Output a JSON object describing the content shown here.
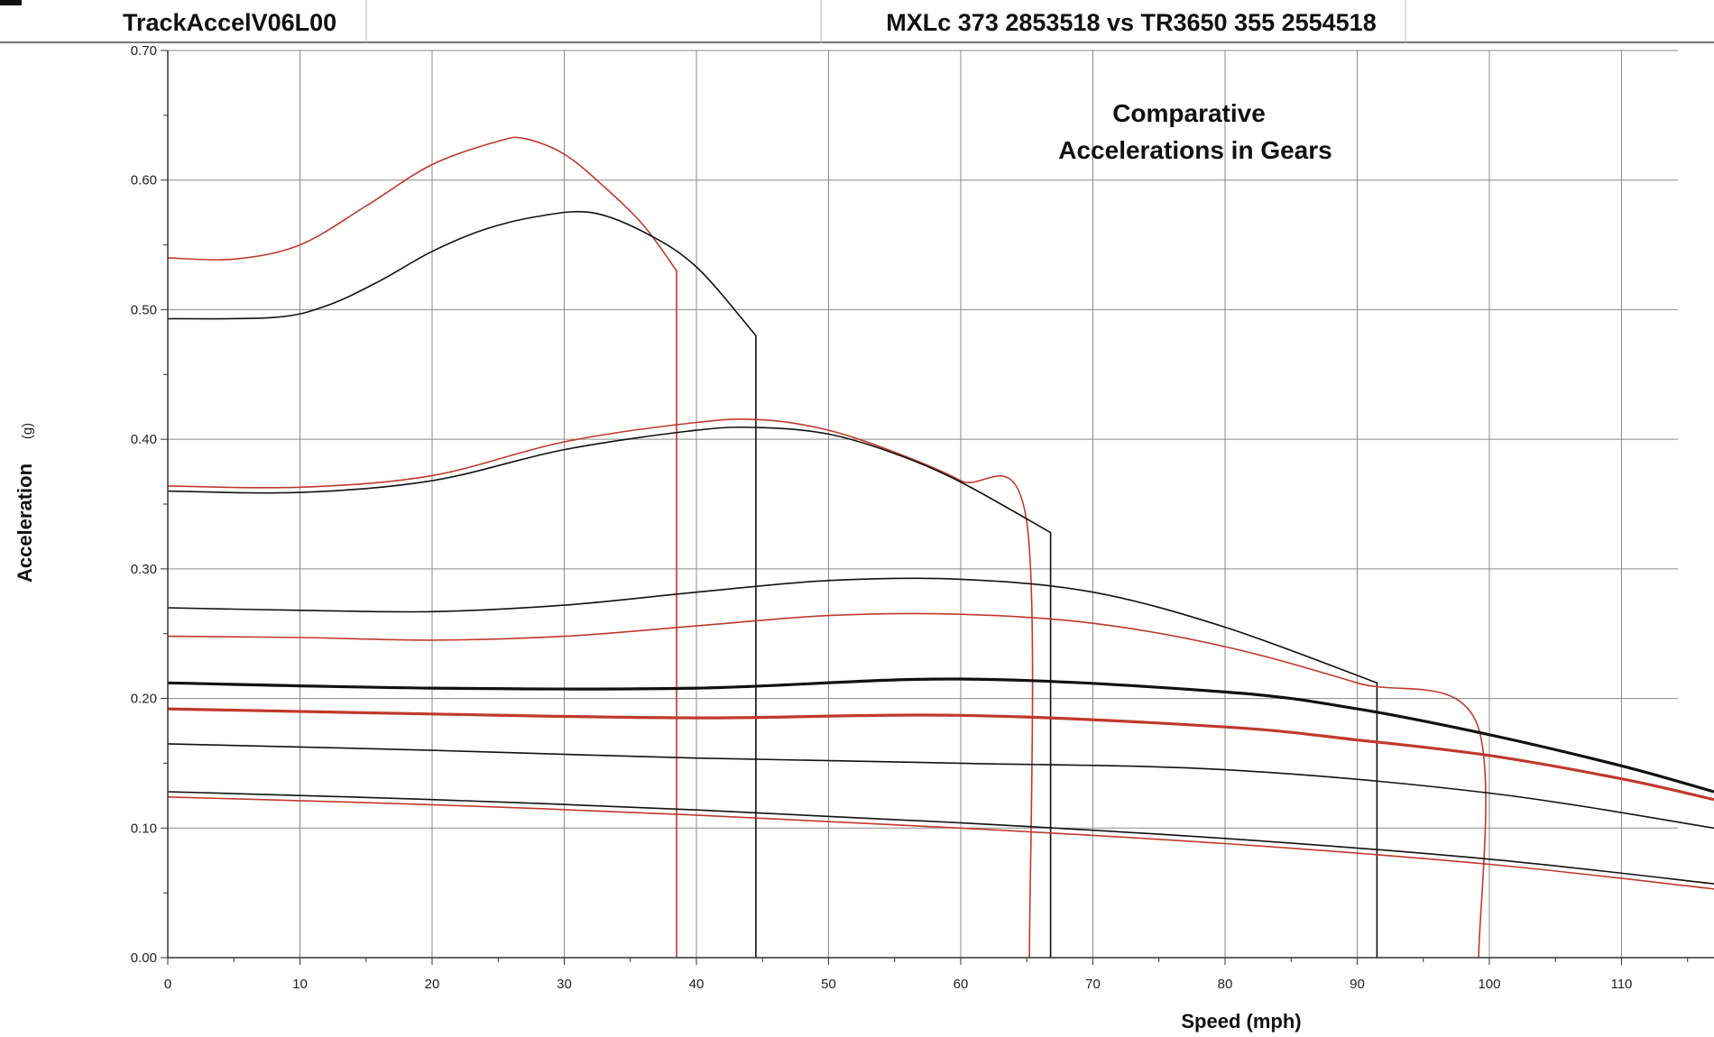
{
  "header": {
    "left_title": "TrackAccelV06L00",
    "right_title": "MXLc 373 2853518 vs TR3650 355 2554518"
  },
  "chart_data": {
    "type": "line",
    "title": "",
    "annotation": [
      "Comparative",
      "Accelerations in Gears"
    ],
    "xlabel": "Speed (mph)",
    "ylabel": "Acceleration",
    "ylabel_unit": "(g)",
    "xlim": [
      0,
      117
    ],
    "ylim": [
      0,
      0.7
    ],
    "x_ticks": [
      0,
      10,
      20,
      30,
      40,
      50,
      60,
      70,
      80,
      90,
      100,
      110
    ],
    "y_ticks": [
      0.0,
      0.1,
      0.2,
      0.3,
      0.4,
      0.5,
      0.6,
      0.7
    ],
    "y_tick_labels": [
      "0.00",
      "0.10",
      "0.20",
      "0.30",
      "0.40",
      "0.50",
      "0.60",
      "0.70"
    ],
    "grid": true,
    "legend": "none",
    "colors": {
      "black": "#111111",
      "red": "#c0392b"
    },
    "series": [
      {
        "color": "red",
        "width": 1.6,
        "points": [
          [
            0,
            0.54
          ],
          [
            5,
            0.539
          ],
          [
            10,
            0.55
          ],
          [
            15,
            0.58
          ],
          [
            20,
            0.612
          ],
          [
            25,
            0.63
          ],
          [
            27,
            0.632
          ],
          [
            30,
            0.62
          ],
          [
            33,
            0.595
          ],
          [
            36,
            0.565
          ],
          [
            38.5,
            0.53
          ],
          [
            38.5,
            0.0
          ]
        ]
      },
      {
        "color": "black",
        "width": 1.6,
        "points": [
          [
            0,
            0.493
          ],
          [
            8,
            0.494
          ],
          [
            12,
            0.503
          ],
          [
            16,
            0.522
          ],
          [
            20,
            0.545
          ],
          [
            24,
            0.562
          ],
          [
            28,
            0.572
          ],
          [
            32,
            0.575
          ],
          [
            36,
            0.56
          ],
          [
            40,
            0.533
          ],
          [
            44.5,
            0.48
          ],
          [
            44.5,
            0.0
          ]
        ]
      },
      {
        "color": "red",
        "width": 1.6,
        "points": [
          [
            0,
            0.364
          ],
          [
            10,
            0.363
          ],
          [
            20,
            0.372
          ],
          [
            30,
            0.398
          ],
          [
            40,
            0.413
          ],
          [
            45,
            0.415
          ],
          [
            50,
            0.407
          ],
          [
            55,
            0.39
          ],
          [
            60,
            0.368
          ],
          [
            65,
            0.336
          ],
          [
            65.2,
            0.0
          ]
        ]
      },
      {
        "color": "black",
        "width": 1.6,
        "points": [
          [
            0,
            0.36
          ],
          [
            10,
            0.359
          ],
          [
            20,
            0.368
          ],
          [
            30,
            0.392
          ],
          [
            40,
            0.407
          ],
          [
            45,
            0.409
          ],
          [
            50,
            0.404
          ],
          [
            55,
            0.389
          ],
          [
            60,
            0.367
          ],
          [
            66.8,
            0.328
          ],
          [
            66.8,
            0.0
          ]
        ]
      },
      {
        "color": "black",
        "width": 1.6,
        "points": [
          [
            0,
            0.27
          ],
          [
            10,
            0.268
          ],
          [
            20,
            0.267
          ],
          [
            30,
            0.272
          ],
          [
            40,
            0.282
          ],
          [
            50,
            0.291
          ],
          [
            60,
            0.292
          ],
          [
            70,
            0.282
          ],
          [
            80,
            0.255
          ],
          [
            91.5,
            0.212
          ],
          [
            91.5,
            0.0
          ]
        ]
      },
      {
        "color": "red",
        "width": 1.6,
        "points": [
          [
            0,
            0.248
          ],
          [
            10,
            0.247
          ],
          [
            20,
            0.245
          ],
          [
            30,
            0.248
          ],
          [
            40,
            0.256
          ],
          [
            50,
            0.264
          ],
          [
            60,
            0.265
          ],
          [
            70,
            0.258
          ],
          [
            80,
            0.24
          ],
          [
            90,
            0.212
          ],
          [
            99,
            0.182
          ],
          [
            99.2,
            0.0
          ]
        ]
      },
      {
        "color": "black",
        "width": 3.2,
        "points": [
          [
            0,
            0.212
          ],
          [
            20,
            0.208
          ],
          [
            40,
            0.208
          ],
          [
            60,
            0.215
          ],
          [
            80,
            0.205
          ],
          [
            90,
            0.192
          ],
          [
            100,
            0.172
          ],
          [
            110,
            0.148
          ],
          [
            117,
            0.128
          ]
        ]
      },
      {
        "color": "red",
        "width": 3.2,
        "points": [
          [
            0,
            0.192
          ],
          [
            20,
            0.188
          ],
          [
            40,
            0.185
          ],
          [
            60,
            0.187
          ],
          [
            80,
            0.178
          ],
          [
            90,
            0.168
          ],
          [
            100,
            0.156
          ],
          [
            110,
            0.138
          ],
          [
            117,
            0.122
          ]
        ]
      },
      {
        "color": "black",
        "width": 1.6,
        "points": [
          [
            0,
            0.165
          ],
          [
            20,
            0.16
          ],
          [
            40,
            0.154
          ],
          [
            60,
            0.15
          ],
          [
            80,
            0.145
          ],
          [
            100,
            0.127
          ],
          [
            117,
            0.1
          ]
        ]
      },
      {
        "color": "black",
        "width": 1.6,
        "points": [
          [
            0,
            0.128
          ],
          [
            20,
            0.122
          ],
          [
            40,
            0.114
          ],
          [
            60,
            0.104
          ],
          [
            80,
            0.092
          ],
          [
            100,
            0.076
          ],
          [
            117,
            0.057
          ]
        ]
      },
      {
        "color": "red",
        "width": 1.6,
        "points": [
          [
            0,
            0.124
          ],
          [
            20,
            0.118
          ],
          [
            40,
            0.11
          ],
          [
            60,
            0.1
          ],
          [
            80,
            0.088
          ],
          [
            100,
            0.072
          ],
          [
            117,
            0.053
          ]
        ]
      }
    ]
  }
}
